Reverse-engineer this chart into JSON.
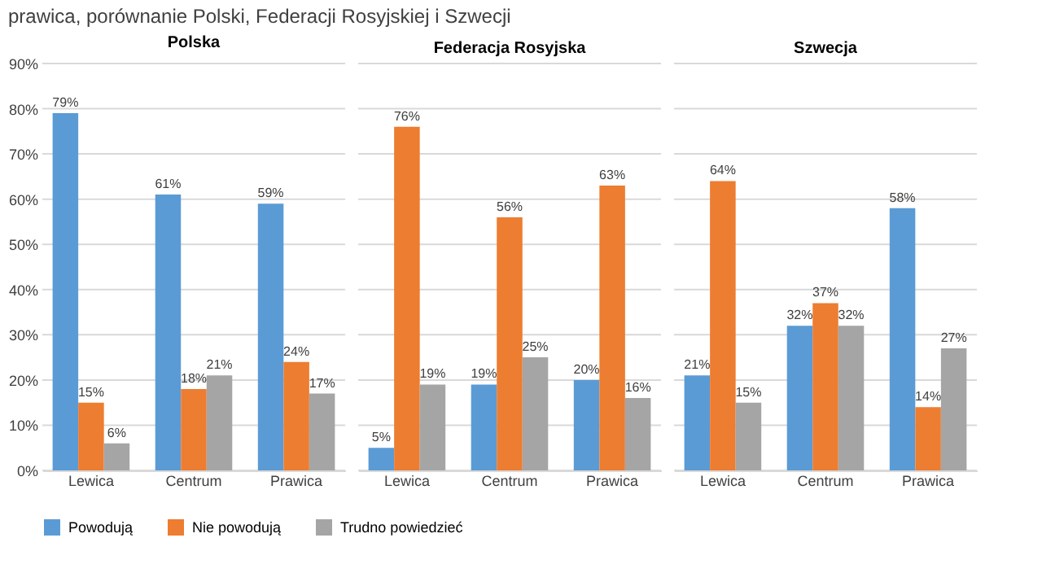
{
  "chart_data": [
    {
      "type": "bar",
      "title": "Polska",
      "annotations": [
        "prawica, porównanie Polski, Federacji Rosyjskiej i Szwecji"
      ],
      "categories": [
        "Lewica",
        "Centrum",
        "Prawica"
      ],
      "ylim": [
        0,
        90
      ],
      "yticks": [
        {
          "value": 0,
          "label": "0%"
        },
        {
          "value": 10,
          "label": "10%"
        },
        {
          "value": 20,
          "label": "20%"
        },
        {
          "value": 30,
          "label": "30%"
        },
        {
          "value": 40,
          "label": "40%"
        },
        {
          "value": 50,
          "label": "50%"
        },
        {
          "value": 60,
          "label": "60%"
        },
        {
          "value": 70,
          "label": "70%"
        },
        {
          "value": 80,
          "label": "80%"
        },
        {
          "value": 90,
          "label": "90%"
        }
      ],
      "grid": "y",
      "legend": "bottom",
      "series": [
        {
          "name": "Powodują",
          "color": "#5b9bd5",
          "values": [
            79,
            61,
            59
          ],
          "value_labels": [
            "79%",
            "61%",
            "59%"
          ]
        },
        {
          "name": "Nie powodują",
          "color": "#ed7d31",
          "values": [
            15,
            18,
            24
          ],
          "value_labels": [
            "15%",
            "18%",
            "24%"
          ]
        },
        {
          "name": "Trudno powiedzieć",
          "color": "#a5a5a5",
          "values": [
            6,
            21,
            17
          ],
          "value_labels": [
            "6%",
            "21%",
            "17%"
          ]
        }
      ]
    },
    {
      "type": "bar",
      "title": "Federacja Rosyjska",
      "categories": [
        "Lewica",
        "Centrum",
        "Prawica"
      ],
      "ylim": [
        0,
        90
      ],
      "yticks": [
        0,
        10,
        20,
        30,
        40,
        50,
        60,
        70,
        80,
        90
      ],
      "grid": "y",
      "tick_labels": "x",
      "series": [
        {
          "color": "#5b9bd5",
          "values": [
            5,
            19,
            20
          ],
          "value_labels": [
            "5%",
            "19%",
            "20%"
          ]
        },
        {
          "color": "#ed7d31",
          "values": [
            76,
            56,
            63
          ],
          "value_labels": [
            "76%",
            "56%",
            "63%"
          ]
        },
        {
          "color": "#a5a5a5",
          "values": [
            19,
            25,
            16
          ],
          "value_labels": [
            "19%",
            "25%",
            "16%"
          ]
        }
      ]
    },
    {
      "type": "bar",
      "title": "Szwecja",
      "categories": [
        "Lewica",
        "Centrum",
        "Prawica"
      ],
      "ylim": [
        0,
        90
      ],
      "yticks": [
        0,
        10,
        20,
        30,
        40,
        50,
        60,
        70,
        80,
        90
      ],
      "grid": "y",
      "tick_labels": "x",
      "series": [
        {
          "color": "#5b9bd5",
          "values": [
            21,
            32,
            58
          ],
          "value_labels": [
            "21%",
            "32%",
            "58%"
          ]
        },
        {
          "color": "#ed7d31",
          "values": [
            64,
            37,
            14
          ],
          "value_labels": [
            "64%",
            "37%",
            "14%"
          ]
        },
        {
          "color": "#a5a5a5",
          "values": [
            15,
            32,
            27
          ],
          "value_labels": [
            "15%",
            "32%",
            "27%"
          ]
        }
      ]
    }
  ]
}
